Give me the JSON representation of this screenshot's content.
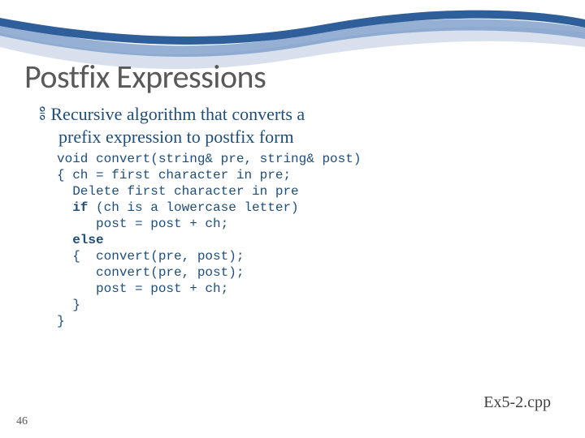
{
  "slide": {
    "title": "Postfix Expressions",
    "title_fontsize": 40,
    "bullet": {
      "swirl_glyph": "༔",
      "line1": "Recursive algorithm that converts a",
      "line2": "prefix expression to postfix form",
      "fontsize": 22,
      "swirl_fontsize": 22,
      "color": "#1f4e79"
    },
    "code": {
      "fontsize": 16,
      "lines": [
        {
          "t": "void convert(string& pre, string& post)"
        },
        {
          "t": "{ ch = first character in pre;"
        },
        {
          "t": "  Delete first character in pre"
        },
        {
          "pre": "  ",
          "kw": "if",
          "post": " (ch is a lowercase letter)"
        },
        {
          "t": "     post = post + ch;"
        },
        {
          "pre": "  ",
          "kw": "else",
          "post": ""
        },
        {
          "t": "  {  convert(pre, post);"
        },
        {
          "t": "     convert(pre, post);"
        },
        {
          "t": "     post = post + ch;"
        },
        {
          "t": "  }"
        },
        {
          "t": "}"
        }
      ]
    },
    "footer_ref": "Ex5-2.cpp",
    "footer_ref_fontsize": 20,
    "page_number": "46",
    "page_number_fontsize": 14
  },
  "wave": {
    "bg_color": "#ffffff",
    "upper_color": "#2f5f9a",
    "lower_color1": "#7c9cc8",
    "lower_color2": "#c7d3e6"
  }
}
